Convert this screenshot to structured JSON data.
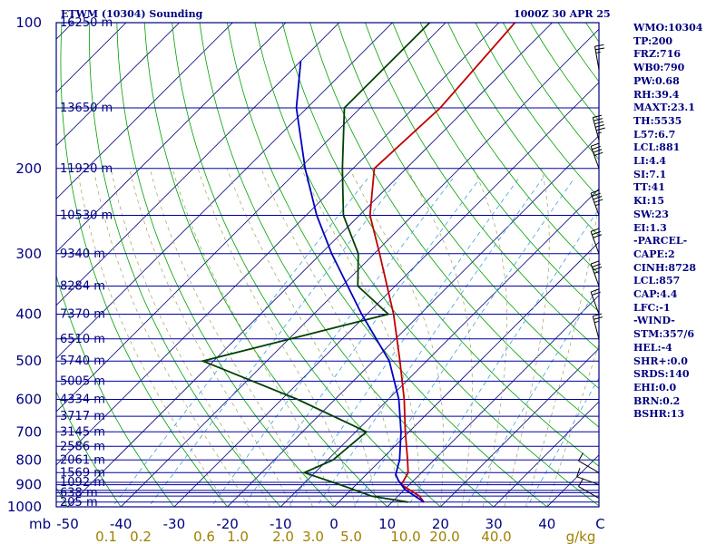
{
  "header": {
    "station": "ETWM (10304) Sounding",
    "time": "1000Z 30 APR 25"
  },
  "indices": [
    "WMO:10304",
    "TP:200",
    "FRZ:716",
    "WB0:790",
    "PW:0.68",
    "RH:39.4",
    "MAXT:23.1",
    "TH:5535",
    "L57:6.7",
    "LCL:881",
    "LI:4.4",
    "SI:7.1",
    "TT:41",
    "KI:15",
    "SW:23",
    "EI:1.3",
    "-PARCEL-",
    "CAPE:2",
    "CINH:8728",
    "LCL:857",
    "CAP:4.4",
    "LFC:-1",
    "-WIND-",
    "STM:357/6",
    "HEL:-4",
    "SHR+:0.0",
    "SRDS:140",
    "EHI:0.0",
    "BRN:0.2",
    "BSHR:13"
  ],
  "colors": {
    "frame": "#000080",
    "isobar": "#0000a0",
    "isotherm": "#000080",
    "dry_adiabat": "#00a000",
    "moist_adiabat": "#a0a060",
    "mixing_ratio": "#40a0e0",
    "temperature": "#c00000",
    "dewpoint": "#004000",
    "parcel": "#0000c0",
    "axis_text": "#000080",
    "mixing_text": "#a08000"
  },
  "chart_data": {
    "type": "line",
    "title": "ETWM (10304) Sounding",
    "subtitle": "1000Z 30 APR 25",
    "y_scale": "log",
    "ylim": [
      1000,
      100
    ],
    "xlim": [
      -50,
      50
    ],
    "y_ticks": [
      "100",
      "200",
      "300",
      "400",
      "500",
      "600",
      "700",
      "800",
      "900",
      "1000"
    ],
    "y_tick_values": [
      100,
      200,
      300,
      400,
      500,
      600,
      700,
      800,
      900,
      1000
    ],
    "x_unit_label": "mb",
    "x_ticks": [
      "-50",
      "-40",
      "-30",
      "-20",
      "-10",
      "0",
      "10",
      "20",
      "30",
      "40",
      "C"
    ],
    "x_tick_values": [
      -50,
      -40,
      -30,
      -20,
      -10,
      0,
      10,
      20,
      30,
      40,
      50
    ],
    "mixing_ratio_labels": [
      "0.1",
      "0.2",
      "0.6",
      "1.0",
      "2.0",
      "3.0",
      "5.0",
      "10.0",
      "20.0",
      "40.0",
      "g/kg"
    ],
    "height_labels": [
      {
        "label": "205 m",
        "p": 978
      },
      {
        "label": "638 m",
        "p": 935
      },
      {
        "label": "1092 m",
        "p": 890
      },
      {
        "label": "1569 m",
        "p": 850
      },
      {
        "label": "2061 m",
        "p": 800
      },
      {
        "label": "2586 m",
        "p": 750
      },
      {
        "label": "3145 m",
        "p": 700
      },
      {
        "label": "3717 m",
        "p": 650
      },
      {
        "label": "4334 m",
        "p": 600
      },
      {
        "label": "5005 m",
        "p": 550
      },
      {
        "label": "5740 m",
        "p": 500
      },
      {
        "label": "6510 m",
        "p": 450
      },
      {
        "label": "7370 m",
        "p": 400
      },
      {
        "label": "8284 m",
        "p": 350
      },
      {
        "label": "9340 m",
        "p": 300
      },
      {
        "label": "10530 m",
        "p": 250
      },
      {
        "label": "11920 m",
        "p": 200
      },
      {
        "label": "13650 m",
        "p": 150
      },
      {
        "label": "16250 m",
        "p": 100
      }
    ],
    "isobars": [
      1000,
      978,
      950,
      935,
      925,
      900,
      890,
      850,
      800,
      750,
      700,
      650,
      600,
      550,
      500,
      450,
      400,
      350,
      300,
      250,
      200,
      150,
      100
    ],
    "series": [
      {
        "key": "temperature",
        "points": [
          [
            978,
            16
          ],
          [
            950,
            14
          ],
          [
            900,
            8.5
          ],
          [
            850,
            7.5
          ],
          [
            800,
            5.0
          ],
          [
            700,
            -0.7
          ],
          [
            600,
            -7
          ],
          [
            500,
            -15
          ],
          [
            400,
            -25
          ],
          [
            300,
            -39
          ],
          [
            250,
            -48
          ],
          [
            200,
            -56
          ],
          [
            150,
            -55
          ],
          [
            100,
            -57
          ]
        ]
      },
      {
        "key": "dewpoint",
        "points": [
          [
            978,
            13
          ],
          [
            950,
            5
          ],
          [
            900,
            -3
          ],
          [
            850,
            -12
          ],
          [
            800,
            -9
          ],
          [
            700,
            -8
          ],
          [
            600,
            -27
          ],
          [
            500,
            -52
          ],
          [
            400,
            -26
          ],
          [
            350,
            -37
          ],
          [
            300,
            -43
          ],
          [
            250,
            -53
          ],
          [
            200,
            -62
          ],
          [
            150,
            -73
          ],
          [
            100,
            -73
          ]
        ]
      },
      {
        "key": "parcel",
        "points": [
          [
            978,
            16
          ],
          [
            920,
            10
          ],
          [
            880,
            7
          ],
          [
            857,
            5.5
          ],
          [
            800,
            3.5
          ],
          [
            700,
            -1.5
          ],
          [
            600,
            -8
          ],
          [
            500,
            -17
          ],
          [
            400,
            -31
          ],
          [
            300,
            -48
          ],
          [
            250,
            -58
          ],
          [
            200,
            -69
          ],
          [
            150,
            -82
          ],
          [
            120,
            -90
          ]
        ]
      }
    ],
    "winds": [
      {
        "p": 960,
        "dir": 300,
        "spd": 10
      },
      {
        "p": 900,
        "dir": 290,
        "spd": 10
      },
      {
        "p": 850,
        "dir": 300,
        "spd": 10
      },
      {
        "p": 450,
        "dir": 345,
        "spd": 15
      },
      {
        "p": 400,
        "dir": 340,
        "spd": 20
      },
      {
        "p": 350,
        "dir": 340,
        "spd": 25
      },
      {
        "p": 300,
        "dir": 340,
        "spd": 30
      },
      {
        "p": 250,
        "dir": 340,
        "spd": 35
      },
      {
        "p": 200,
        "dir": 340,
        "spd": 40
      },
      {
        "p": 175,
        "dir": 345,
        "spd": 45
      },
      {
        "p": 125,
        "dir": 350,
        "spd": 15
      }
    ]
  }
}
